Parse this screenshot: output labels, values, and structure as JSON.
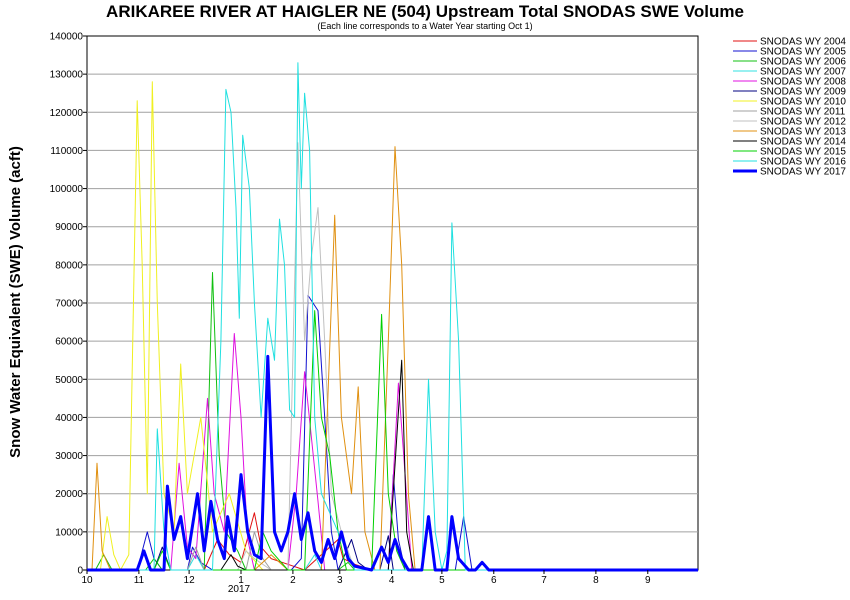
{
  "chart_data": {
    "type": "line",
    "title": "ARIKAREE RIVER AT HAIGLER NE (504) Upstream Total SNODAS SWE Volume",
    "subtitle": "(Each line corresponds to a Water Year starting Oct 1)",
    "ylabel": "Snow Water Equivalent (SWE) Volume (acft)",
    "xlabel": "",
    "ylim": [
      0,
      140000
    ],
    "yticks": [
      0,
      10000,
      20000,
      30000,
      40000,
      50000,
      60000,
      70000,
      80000,
      90000,
      100000,
      110000,
      120000,
      130000,
      140000
    ],
    "ytick_labels": [
      "0",
      "10000",
      "20000",
      "30000",
      "40000",
      "50000",
      "60000",
      "70000",
      "80000",
      "90000",
      "100000",
      "110000",
      "120000",
      "130000",
      "140000"
    ],
    "xlim": [
      0,
      365
    ],
    "xticks": [
      0,
      31,
      61,
      92,
      123,
      151,
      182,
      212,
      243,
      273,
      304,
      335
    ],
    "xtick_labels": [
      "10",
      "11",
      "12",
      "1",
      "2",
      "3",
      "4",
      "5",
      "6",
      "7",
      "8",
      "9"
    ],
    "x_secondary_label": "2017",
    "grid": "horizontal",
    "legend_position": "right",
    "series": [
      {
        "name": "SNODAS WY 2004",
        "color": "#e01010",
        "width": 1,
        "points": [
          [
            0,
            0
          ],
          [
            70,
            0
          ],
          [
            78,
            8000
          ],
          [
            85,
            4000
          ],
          [
            92,
            2000
          ],
          [
            100,
            15000
          ],
          [
            104,
            6000
          ],
          [
            110,
            3000
          ],
          [
            120,
            1500
          ],
          [
            130,
            0
          ],
          [
            150,
            8000
          ],
          [
            153,
            3000
          ],
          [
            160,
            1500
          ],
          [
            170,
            0
          ],
          [
            365,
            0
          ]
        ]
      },
      {
        "name": "SNODAS WY 2005",
        "color": "#1010d0",
        "width": 1,
        "points": [
          [
            0,
            0
          ],
          [
            30,
            0
          ],
          [
            36,
            10000
          ],
          [
            40,
            3000
          ],
          [
            45,
            0
          ],
          [
            60,
            0
          ],
          [
            63,
            6000
          ],
          [
            68,
            2000
          ],
          [
            75,
            0
          ],
          [
            122,
            0
          ],
          [
            128,
            3000
          ],
          [
            132,
            72000
          ],
          [
            138,
            68000
          ],
          [
            142,
            40000
          ],
          [
            146,
            10000
          ],
          [
            150,
            0
          ],
          [
            180,
            0
          ],
          [
            183,
            25000
          ],
          [
            186,
            8000
          ],
          [
            190,
            0
          ],
          [
            220,
            0
          ],
          [
            225,
            14000
          ],
          [
            230,
            0
          ],
          [
            365,
            0
          ]
        ]
      },
      {
        "name": "SNODAS WY 2006",
        "color": "#10c010",
        "width": 1,
        "points": [
          [
            0,
            0
          ],
          [
            5,
            0
          ],
          [
            10,
            4000
          ],
          [
            15,
            0
          ],
          [
            35,
            0
          ],
          [
            40,
            3000
          ],
          [
            45,
            0
          ],
          [
            70,
            0
          ],
          [
            75,
            78000
          ],
          [
            79,
            30000
          ],
          [
            83,
            10000
          ],
          [
            90,
            5000
          ],
          [
            95,
            0
          ],
          [
            150,
            0
          ],
          [
            156,
            2000
          ],
          [
            160,
            0
          ],
          [
            365,
            0
          ]
        ]
      },
      {
        "name": "SNODAS WY 2007",
        "color": "#30e0e0",
        "width": 1,
        "points": [
          [
            0,
            0
          ],
          [
            60,
            0
          ],
          [
            65,
            4000
          ],
          [
            70,
            0
          ],
          [
            130,
            0
          ],
          [
            136,
            4000
          ],
          [
            140,
            0
          ],
          [
            365,
            0
          ]
        ]
      },
      {
        "name": "SNODAS WY 2008",
        "color": "#e010e0",
        "width": 1,
        "points": [
          [
            0,
            0
          ],
          [
            50,
            0
          ],
          [
            55,
            28000
          ],
          [
            60,
            6000
          ],
          [
            65,
            3000
          ],
          [
            72,
            45000
          ],
          [
            76,
            20000
          ],
          [
            82,
            10000
          ],
          [
            88,
            62000
          ],
          [
            92,
            40000
          ],
          [
            96,
            8000
          ],
          [
            100,
            0
          ],
          [
            120,
            0
          ],
          [
            125,
            20000
          ],
          [
            130,
            52000
          ],
          [
            134,
            35000
          ],
          [
            138,
            18000
          ],
          [
            142,
            0
          ],
          [
            180,
            0
          ],
          [
            186,
            49000
          ],
          [
            190,
            25000
          ],
          [
            194,
            0
          ],
          [
            365,
            0
          ]
        ]
      },
      {
        "name": "SNODAS WY 2009",
        "color": "#000080",
        "width": 1,
        "points": [
          [
            0,
            0
          ],
          [
            40,
            0
          ],
          [
            45,
            6000
          ],
          [
            50,
            0
          ],
          [
            150,
            0
          ],
          [
            158,
            8000
          ],
          [
            162,
            2000
          ],
          [
            168,
            0
          ],
          [
            175,
            0
          ],
          [
            180,
            9000
          ],
          [
            183,
            0
          ],
          [
            365,
            0
          ]
        ]
      },
      {
        "name": "SNODAS WY 2010",
        "color": "#f0f020",
        "width": 1,
        "points": [
          [
            0,
            0
          ],
          [
            8,
            0
          ],
          [
            12,
            14000
          ],
          [
            16,
            4000
          ],
          [
            20,
            0
          ],
          [
            25,
            4000
          ],
          [
            30,
            123000
          ],
          [
            33,
            80000
          ],
          [
            36,
            20000
          ],
          [
            39,
            128000
          ],
          [
            42,
            70000
          ],
          [
            46,
            20000
          ],
          [
            52,
            10000
          ],
          [
            56,
            54000
          ],
          [
            60,
            20000
          ],
          [
            68,
            40000
          ],
          [
            75,
            10000
          ],
          [
            85,
            20000
          ],
          [
            95,
            5000
          ],
          [
            105,
            0
          ],
          [
            365,
            0
          ]
        ]
      },
      {
        "name": "SNODAS WY 2011",
        "color": "#a0a0a0",
        "width": 1,
        "points": [
          [
            0,
            0
          ],
          [
            60,
            0
          ],
          [
            65,
            6000
          ],
          [
            70,
            0
          ],
          [
            95,
            0
          ],
          [
            100,
            10000
          ],
          [
            105,
            3000
          ],
          [
            110,
            0
          ],
          [
            365,
            0
          ]
        ]
      },
      {
        "name": "SNODAS WY 2012",
        "color": "#c0c0c0",
        "width": 1,
        "points": [
          [
            0,
            0
          ],
          [
            90,
            0
          ],
          [
            95,
            5000
          ],
          [
            100,
            3000
          ],
          [
            110,
            0
          ],
          [
            120,
            0
          ],
          [
            126,
            112000
          ],
          [
            130,
            60000
          ],
          [
            134,
            82000
          ],
          [
            138,
            95000
          ],
          [
            142,
            60000
          ],
          [
            146,
            20000
          ],
          [
            152,
            10000
          ],
          [
            160,
            0
          ],
          [
            365,
            0
          ]
        ]
      },
      {
        "name": "SNODAS WY 2013",
        "color": "#e09010",
        "width": 1,
        "points": [
          [
            0,
            0
          ],
          [
            3,
            0
          ],
          [
            6,
            28000
          ],
          [
            9,
            5000
          ],
          [
            14,
            0
          ],
          [
            100,
            0
          ],
          [
            110,
            4000
          ],
          [
            120,
            0
          ],
          [
            140,
            0
          ],
          [
            148,
            93000
          ],
          [
            152,
            40000
          ],
          [
            158,
            20000
          ],
          [
            162,
            48000
          ],
          [
            166,
            10000
          ],
          [
            172,
            0
          ],
          [
            175,
            0
          ],
          [
            180,
            60000
          ],
          [
            184,
            111000
          ],
          [
            188,
            80000
          ],
          [
            192,
            20000
          ],
          [
            196,
            0
          ],
          [
            365,
            0
          ]
        ]
      },
      {
        "name": "SNODAS WY 2014",
        "color": "#000000",
        "width": 1,
        "points": [
          [
            0,
            0
          ],
          [
            80,
            0
          ],
          [
            86,
            4000
          ],
          [
            90,
            1000
          ],
          [
            95,
            0
          ],
          [
            180,
            0
          ],
          [
            188,
            55000
          ],
          [
            191,
            10000
          ],
          [
            195,
            0
          ],
          [
            365,
            0
          ]
        ]
      },
      {
        "name": "SNODAS WY 2015",
        "color": "#00d000",
        "width": 1,
        "points": [
          [
            0,
            0
          ],
          [
            40,
            0
          ],
          [
            45,
            5000
          ],
          [
            50,
            0
          ],
          [
            100,
            0
          ],
          [
            105,
            10000
          ],
          [
            110,
            5000
          ],
          [
            120,
            0
          ],
          [
            130,
            0
          ],
          [
            136,
            68000
          ],
          [
            140,
            40000
          ],
          [
            145,
            30000
          ],
          [
            150,
            10000
          ],
          [
            155,
            0
          ],
          [
            170,
            0
          ],
          [
            176,
            67000
          ],
          [
            180,
            20000
          ],
          [
            185,
            5000
          ],
          [
            190,
            0
          ],
          [
            365,
            0
          ]
        ]
      },
      {
        "name": "SNODAS WY 2016",
        "color": "#20e0e0",
        "width": 1,
        "points": [
          [
            0,
            0
          ],
          [
            40,
            0
          ],
          [
            42,
            37000
          ],
          [
            46,
            10000
          ],
          [
            50,
            0
          ],
          [
            75,
            0
          ],
          [
            80,
            60000
          ],
          [
            83,
            126000
          ],
          [
            86,
            120000
          ],
          [
            89,
            95000
          ],
          [
            91,
            66000
          ],
          [
            93,
            114000
          ],
          [
            97,
            100000
          ],
          [
            100,
            70000
          ],
          [
            104,
            40000
          ],
          [
            108,
            66000
          ],
          [
            112,
            55000
          ],
          [
            115,
            92000
          ],
          [
            118,
            80000
          ],
          [
            121,
            42000
          ],
          [
            124,
            40000
          ],
          [
            126,
            133000
          ],
          [
            128,
            100000
          ],
          [
            130,
            125000
          ],
          [
            133,
            110000
          ],
          [
            136,
            40000
          ],
          [
            140,
            20000
          ],
          [
            150,
            10000
          ],
          [
            160,
            0
          ],
          [
            200,
            0
          ],
          [
            204,
            50000
          ],
          [
            208,
            10000
          ],
          [
            212,
            0
          ],
          [
            215,
            5000
          ],
          [
            218,
            91000
          ],
          [
            222,
            60000
          ],
          [
            226,
            0
          ],
          [
            365,
            0
          ]
        ]
      },
      {
        "name": "SNODAS WY 2017",
        "color": "#0000ff",
        "width": 3,
        "points": [
          [
            0,
            0
          ],
          [
            30,
            0
          ],
          [
            34,
            5000
          ],
          [
            38,
            0
          ],
          [
            46,
            0
          ],
          [
            48,
            22000
          ],
          [
            52,
            8000
          ],
          [
            56,
            14000
          ],
          [
            60,
            3000
          ],
          [
            66,
            20000
          ],
          [
            70,
            5000
          ],
          [
            74,
            18000
          ],
          [
            78,
            8000
          ],
          [
            82,
            3000
          ],
          [
            84,
            14000
          ],
          [
            88,
            5000
          ],
          [
            92,
            25000
          ],
          [
            96,
            10000
          ],
          [
            100,
            4000
          ],
          [
            104,
            3000
          ],
          [
            108,
            56000
          ],
          [
            112,
            10000
          ],
          [
            116,
            5000
          ],
          [
            120,
            10000
          ],
          [
            124,
            20000
          ],
          [
            128,
            8000
          ],
          [
            132,
            15000
          ],
          [
            136,
            5000
          ],
          [
            140,
            2000
          ],
          [
            144,
            8000
          ],
          [
            148,
            3000
          ],
          [
            152,
            10000
          ],
          [
            156,
            3000
          ],
          [
            160,
            1000
          ],
          [
            170,
            0
          ],
          [
            176,
            6000
          ],
          [
            180,
            2000
          ],
          [
            184,
            8000
          ],
          [
            188,
            3000
          ],
          [
            192,
            0
          ],
          [
            200,
            0
          ],
          [
            204,
            14000
          ],
          [
            208,
            0
          ],
          [
            215,
            0
          ],
          [
            218,
            14000
          ],
          [
            222,
            3000
          ],
          [
            228,
            0
          ],
          [
            232,
            0
          ],
          [
            236,
            2000
          ],
          [
            240,
            0
          ],
          [
            365,
            0
          ]
        ]
      }
    ]
  }
}
